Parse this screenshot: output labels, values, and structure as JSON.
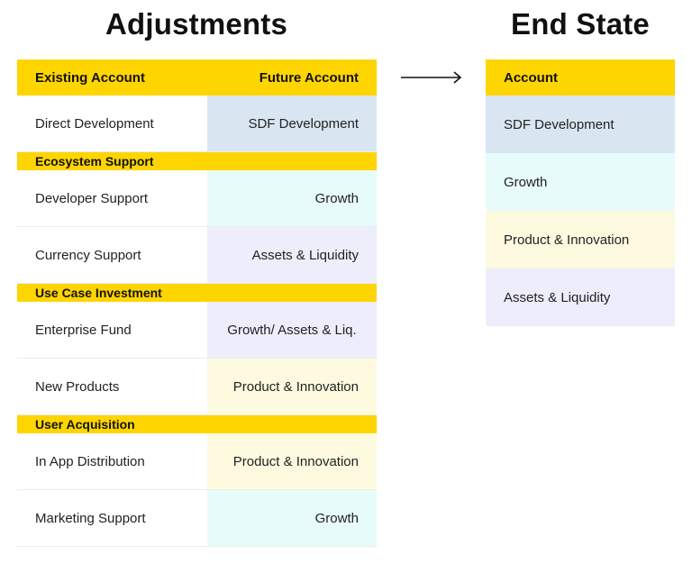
{
  "titles": {
    "adjustments": "Adjustments",
    "end_state": "End State"
  },
  "colors": {
    "header_yellow": "#ffd500",
    "sdf_blue": "#d9e6f2",
    "growth_teal": "#e7fbfa",
    "assets_lavender": "#eeedfb",
    "product_yellow": "#fdfadf"
  },
  "adjustments": {
    "header": {
      "existing": "Existing Account",
      "future": "Future Account"
    },
    "direct_row": {
      "existing": "Direct Development",
      "future": "SDF Development"
    },
    "ecosystem": {
      "label": "Ecosystem Support",
      "rows": [
        {
          "existing": "Developer Support",
          "future": "Growth"
        },
        {
          "existing": "Currency Support",
          "future": "Assets & Liquidity"
        }
      ]
    },
    "use_case": {
      "label": "Use Case Investment",
      "rows": [
        {
          "existing": "Enterprise Fund",
          "future": "Growth/ Assets & Liq."
        },
        {
          "existing": "New Products",
          "future": "Product & Innovation"
        }
      ]
    },
    "user_acq": {
      "label": "User Acquisition",
      "rows": [
        {
          "existing": "In App Distribution",
          "future": "Product & Innovation"
        },
        {
          "existing": "Marketing Support",
          "future": "Growth"
        }
      ]
    }
  },
  "end_state": {
    "header": "Account",
    "items": [
      "SDF Development",
      "Growth",
      "Product & Innovation",
      "Assets & Liquidity"
    ]
  },
  "arrow_icon": "right-arrow-icon"
}
